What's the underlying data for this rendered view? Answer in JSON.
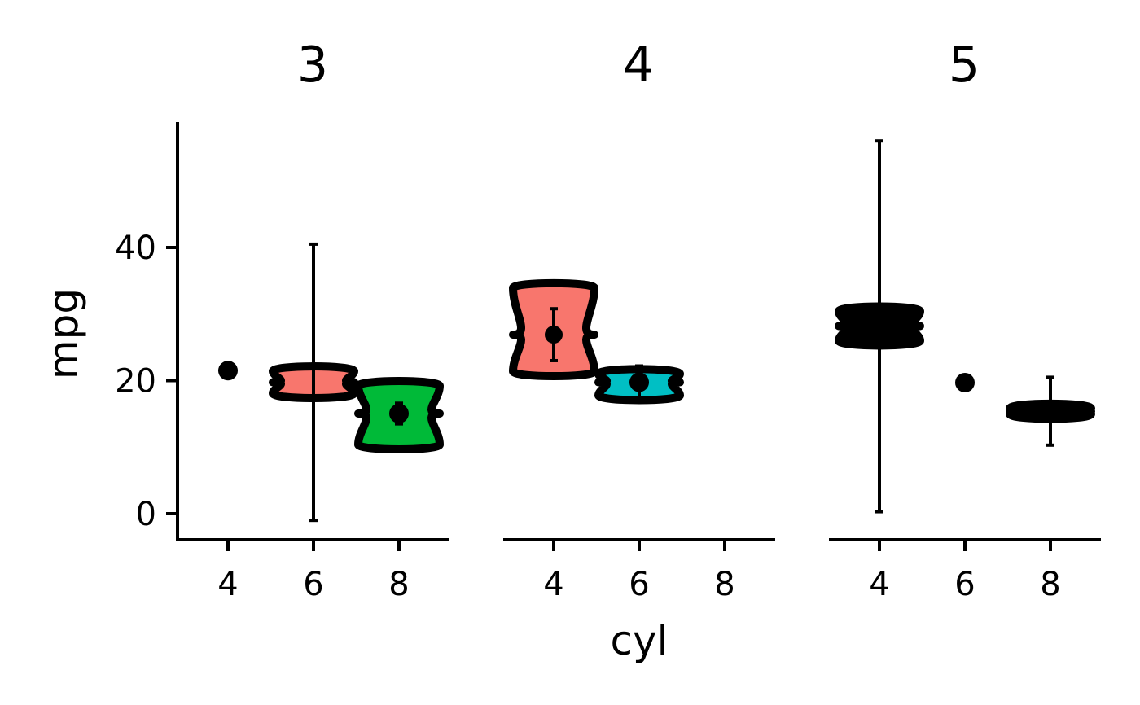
{
  "chart_data": {
    "type": "violin",
    "xlabel": "cyl",
    "ylabel": "mpg",
    "ylim": [
      -4,
      58
    ],
    "y_ticks": [
      0,
      20,
      40
    ],
    "x_categories": [
      "4",
      "6",
      "8"
    ],
    "facet_variable": "gear",
    "colors": {
      "4": "#F8766D",
      "6": "#00BFC4",
      "8": "#00BA38",
      "outline": "#000000",
      "axis": "#000000"
    },
    "panels": [
      {
        "label": "3",
        "groups": [
          {
            "cyl": "4",
            "kind": "point",
            "mean": 21.5
          },
          {
            "cyl": "6",
            "kind": "violin",
            "fill": "#F8766D",
            "min": 18.1,
            "max": 21.4,
            "mean": 19.75,
            "err_low": -1.0,
            "err_high": 40.5
          },
          {
            "cyl": "8",
            "kind": "violin",
            "fill": "#00BA38",
            "min": 10.4,
            "max": 19.2,
            "mean": 15.05,
            "err_low": 13.5,
            "err_high": 16.6
          }
        ]
      },
      {
        "label": "4",
        "groups": [
          {
            "cyl": "4",
            "kind": "violin",
            "fill": "#F8766D",
            "min": 21.4,
            "max": 33.9,
            "mean": 26.9,
            "err_low": 23.0,
            "err_high": 30.8
          },
          {
            "cyl": "6",
            "kind": "violin",
            "fill": "#00BFC4",
            "min": 17.8,
            "max": 21.0,
            "mean": 19.75,
            "err_low": 17.3,
            "err_high": 22.2
          }
        ]
      },
      {
        "label": "5",
        "groups": [
          {
            "cyl": "4",
            "kind": "violin",
            "fill": "#000000",
            "min": 26.0,
            "max": 30.4,
            "mean": 28.2,
            "err_low": 0.3,
            "err_high": 56.0
          },
          {
            "cyl": "6",
            "kind": "point",
            "mean": 19.7
          },
          {
            "cyl": "8",
            "kind": "violin",
            "fill": "#000000",
            "min": 15.0,
            "max": 15.8,
            "mean": 15.4,
            "err_low": 10.3,
            "err_high": 20.5
          }
        ]
      }
    ]
  }
}
